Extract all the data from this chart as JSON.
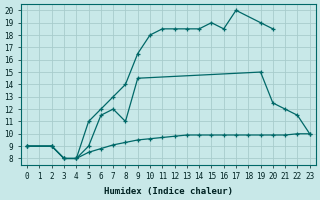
{
  "xlabel": "Humidex (Indice chaleur)",
  "xlim": [
    -0.5,
    23.5
  ],
  "ylim": [
    7.5,
    20.5
  ],
  "xticks": [
    0,
    1,
    2,
    3,
    4,
    5,
    6,
    7,
    8,
    9,
    10,
    11,
    12,
    13,
    14,
    15,
    16,
    17,
    18,
    19,
    20,
    21,
    22,
    23
  ],
  "yticks": [
    8,
    9,
    10,
    11,
    12,
    13,
    14,
    15,
    16,
    17,
    18,
    19,
    20
  ],
  "bg_color": "#c8e8e8",
  "grid_color": "#a8cccc",
  "line_color": "#006868",
  "line1_x": [
    0,
    2,
    3,
    4,
    5,
    6,
    7,
    8,
    9,
    10,
    11,
    12,
    13,
    14,
    15,
    16,
    17,
    19,
    20
  ],
  "line1_y": [
    9,
    9,
    8,
    8,
    11,
    12,
    13,
    14,
    16.5,
    18,
    18.5,
    18.5,
    18.5,
    18.5,
    19,
    18.5,
    20,
    19,
    18.5
  ],
  "line2_x": [
    0,
    2,
    3,
    4,
    5,
    6,
    7,
    8,
    9,
    19,
    20,
    21,
    22,
    23
  ],
  "line2_y": [
    9,
    9,
    8,
    8,
    9,
    11.5,
    12,
    11,
    14.5,
    15,
    12.5,
    12,
    11.5,
    10
  ],
  "line3_x": [
    0,
    2,
    3,
    4,
    5,
    6,
    7,
    8,
    9,
    10,
    11,
    12,
    13,
    14,
    15,
    16,
    17,
    18,
    19,
    20,
    21,
    22,
    23
  ],
  "line3_y": [
    9,
    9,
    8,
    8,
    8.5,
    8.8,
    9.1,
    9.3,
    9.5,
    9.6,
    9.7,
    9.8,
    9.9,
    9.9,
    9.9,
    9.9,
    9.9,
    9.9,
    9.9,
    9.9,
    9.9,
    10,
    10
  ]
}
